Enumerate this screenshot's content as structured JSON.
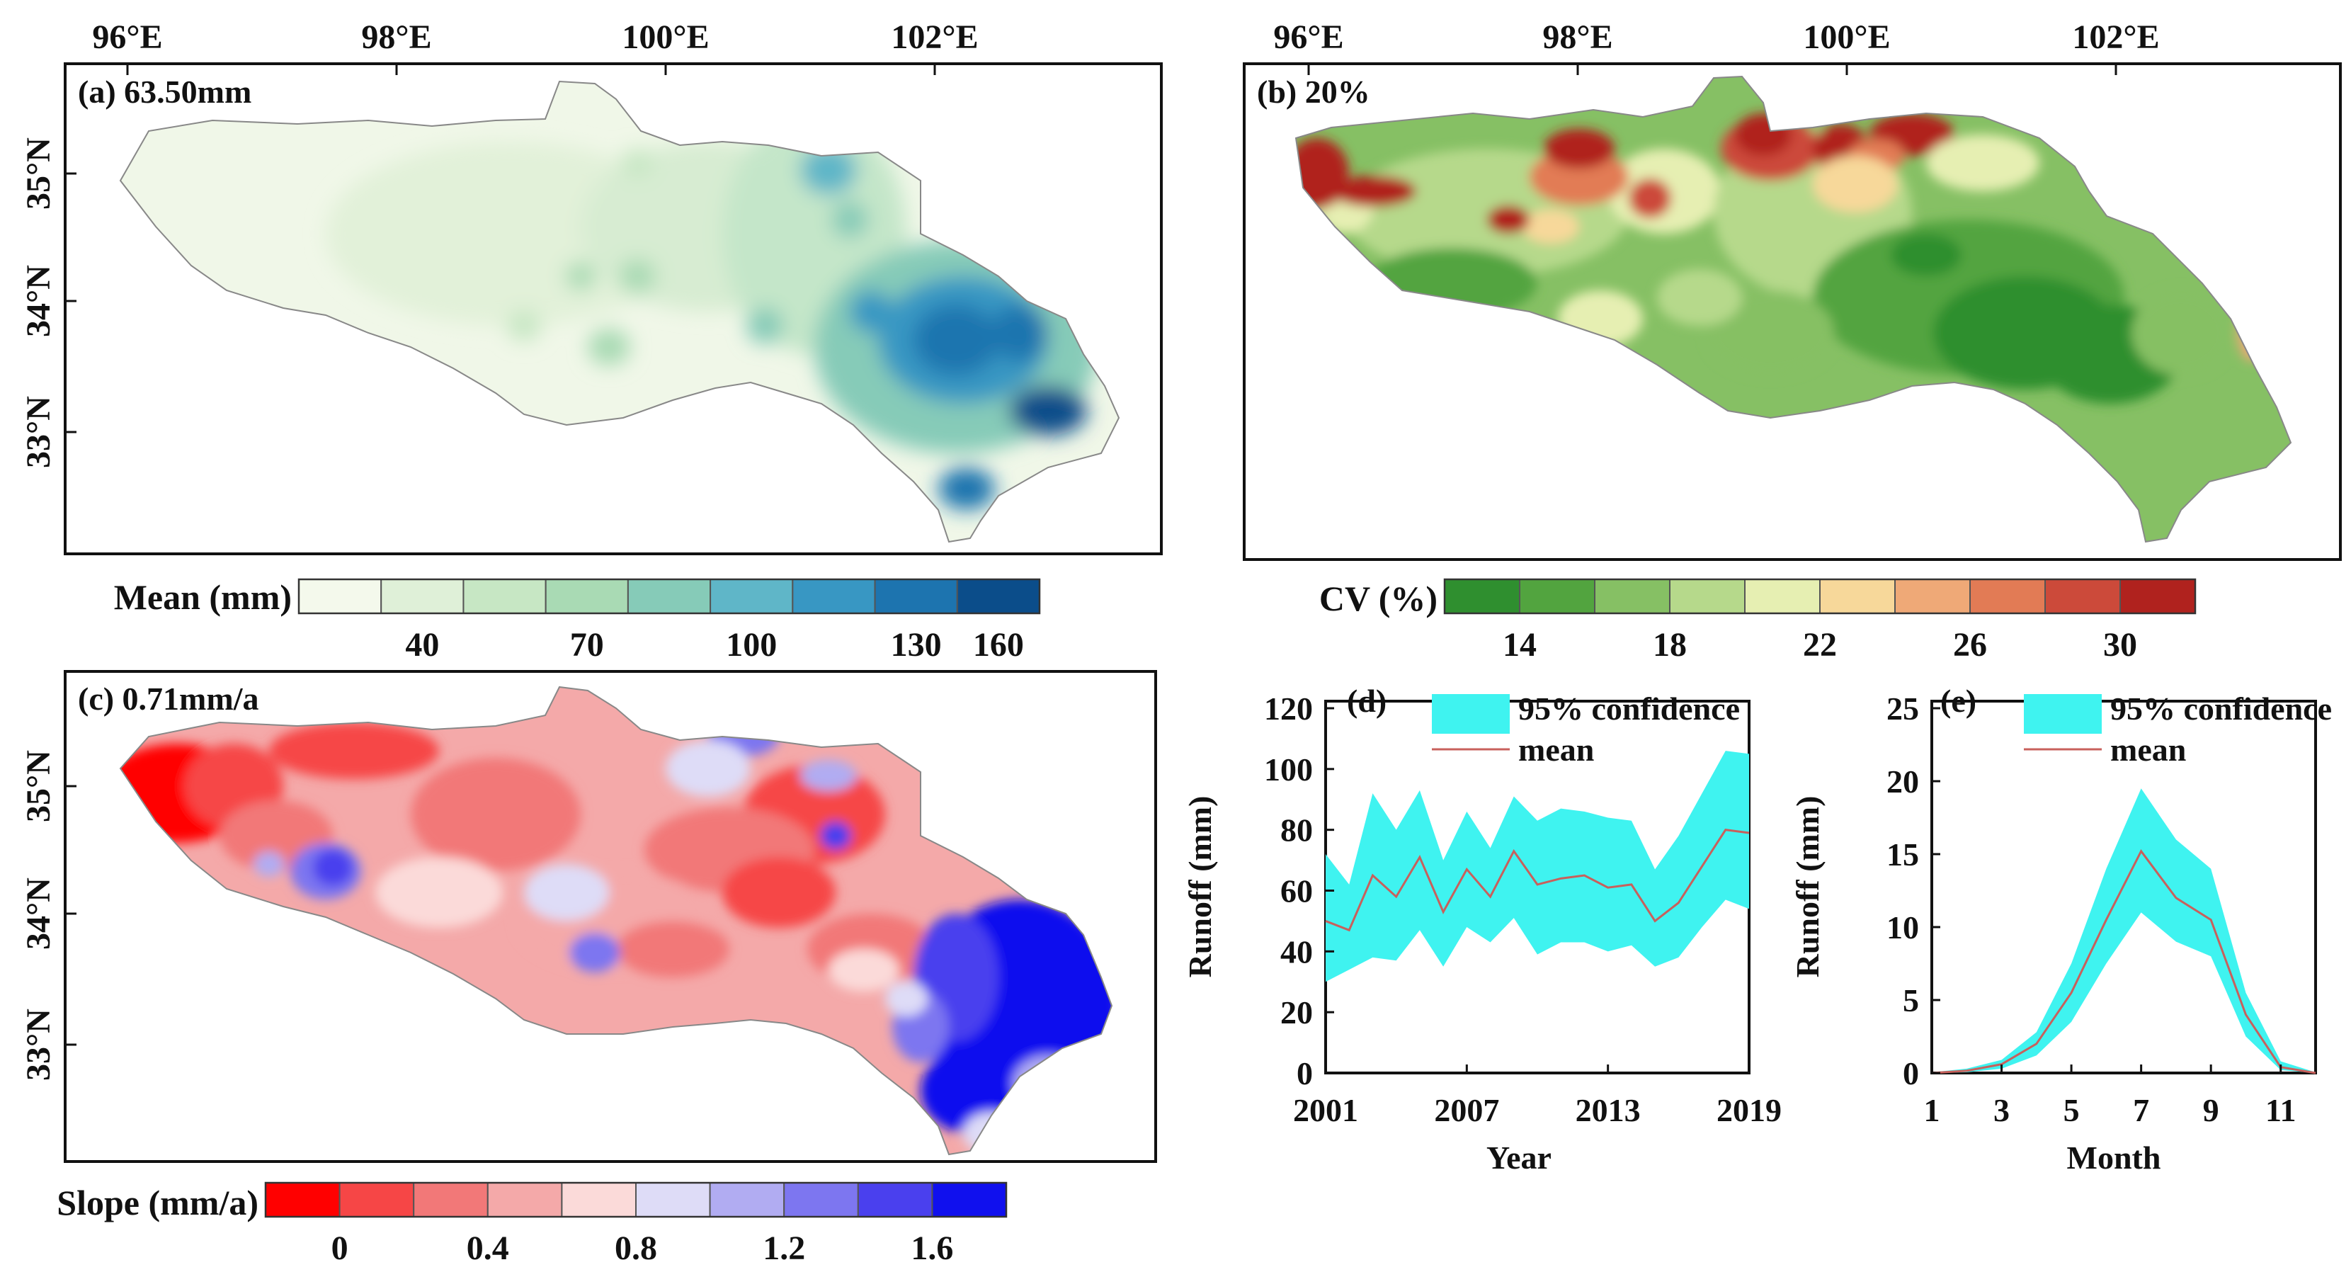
{
  "chart_data": [
    {
      "type": "heatmap",
      "panel": "a",
      "title": "(a) 63.50mm",
      "lon_ticks": [
        "96°E",
        "98°E",
        "100°E",
        "102°E"
      ],
      "lat_ticks": [
        "35°N",
        "34°N",
        "33°N"
      ],
      "legend_title": "Mean (mm)",
      "legend_labels": [
        "40",
        "70",
        "100",
        "130",
        "160"
      ],
      "legend_colors": [
        "#f4f9ec",
        "#dff0d8",
        "#c7e7c4",
        "#a9dab4",
        "#86cbb8",
        "#5fb6c8",
        "#3897c3",
        "#1d74af",
        "#0b4d8a"
      ]
    },
    {
      "type": "heatmap",
      "panel": "b",
      "title": "(b) 20%",
      "lon_ticks": [
        "96°E",
        "98°E",
        "100°E",
        "102°E"
      ],
      "legend_title": "CV (%)",
      "legend_labels": [
        "14",
        "18",
        "22",
        "26",
        "30"
      ],
      "legend_colors": [
        "#2f8f2f",
        "#52a43f",
        "#86c064",
        "#b6d98b",
        "#e6efb2",
        "#f7d89a",
        "#efa977",
        "#e27b55",
        "#cc4a3a",
        "#b0221e"
      ]
    },
    {
      "type": "heatmap",
      "panel": "c",
      "title": "(c) 0.71mm/a",
      "lat_ticks": [
        "35°N",
        "34°N",
        "33°N"
      ],
      "legend_title": "Slope (mm/a)",
      "legend_labels": [
        "0",
        "0.4",
        "0.8",
        "1.2",
        "1.6"
      ],
      "legend_colors": [
        "#ff0000",
        "#f64646",
        "#f27878",
        "#f4a9a9",
        "#fbdad9",
        "#dedcf7",
        "#b1acf2",
        "#7d76f0",
        "#4a40ee",
        "#1010ee"
      ]
    },
    {
      "type": "area",
      "panel": "d",
      "title": "(d)",
      "xlabel": "Year",
      "ylabel": "Runoff (mm)",
      "xlim": [
        2001,
        2019
      ],
      "ylim": [
        0,
        120
      ],
      "x_ticks": [
        "2001",
        "2007",
        "2013",
        "2019"
      ],
      "y_ticks": [
        "0",
        "20",
        "40",
        "60",
        "80",
        "100",
        "120"
      ],
      "legend": [
        "95% confidence",
        "mean"
      ],
      "x": [
        2001,
        2002,
        2003,
        2004,
        2005,
        2006,
        2007,
        2008,
        2009,
        2010,
        2011,
        2012,
        2013,
        2014,
        2015,
        2016,
        2017,
        2018,
        2019
      ],
      "mean": [
        50,
        47,
        65,
        58,
        71,
        53,
        67,
        58,
        73,
        62,
        64,
        65,
        61,
        62,
        50,
        56,
        68,
        80,
        79
      ],
      "upper": [
        72,
        62,
        92,
        80,
        93,
        70,
        86,
        74,
        91,
        83,
        87,
        86,
        84,
        83,
        67,
        78,
        92,
        106,
        105
      ],
      "lower": [
        30,
        34,
        38,
        37,
        47,
        35,
        48,
        43,
        51,
        39,
        43,
        43,
        40,
        42,
        35,
        38,
        48,
        57,
        54
      ]
    },
    {
      "type": "area",
      "panel": "e",
      "title": "(e)",
      "xlabel": "Month",
      "ylabel": "Runoff (mm)",
      "xlim": [
        1,
        12
      ],
      "ylim": [
        0,
        25
      ],
      "x_ticks": [
        "1",
        "3",
        "5",
        "7",
        "9",
        "11"
      ],
      "y_ticks": [
        "0",
        "5",
        "10",
        "15",
        "20",
        "25"
      ],
      "legend": [
        "95% confidence",
        "mean"
      ],
      "x": [
        1,
        2,
        3,
        4,
        5,
        6,
        7,
        8,
        9,
        10,
        11,
        12
      ],
      "mean": [
        0,
        0.15,
        0.6,
        2,
        5.5,
        10.5,
        15.2,
        12,
        10.5,
        4,
        0.4,
        0
      ],
      "upper": [
        0.05,
        0.3,
        0.9,
        2.8,
        7.5,
        14,
        19.5,
        16,
        14,
        5.5,
        0.8,
        0.05
      ],
      "lower": [
        0,
        0.05,
        0.3,
        1.2,
        3.5,
        7.5,
        11,
        9,
        8,
        2.5,
        0.2,
        0
      ]
    }
  ]
}
